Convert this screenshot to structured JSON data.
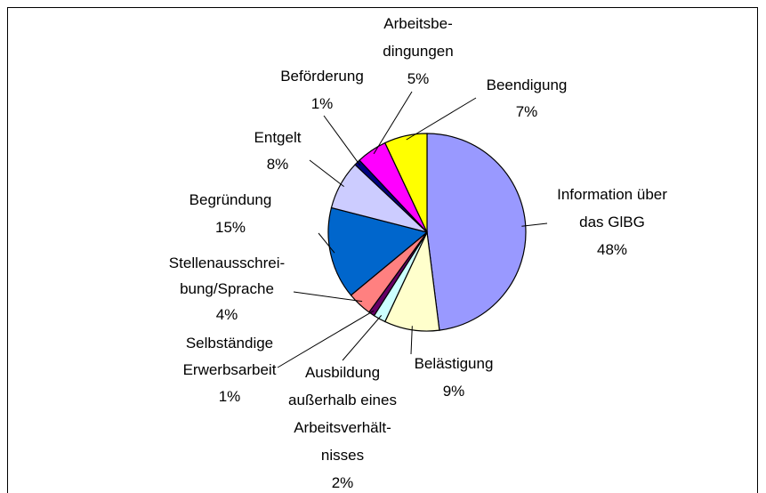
{
  "chart_data": {
    "type": "pie",
    "categories": [
      [
        "Information über",
        "das GlBG"
      ],
      [
        "Belästigung"
      ],
      [
        "Ausbildung",
        "außerhalb eines",
        "Arbeitsverhält-",
        "nisses"
      ],
      [
        "Selbständige",
        "Erwerbsarbeit"
      ],
      [
        "Stellenausschrei-",
        "bung/Sprache"
      ],
      [
        "Begründung"
      ],
      [
        "Entgelt"
      ],
      [
        "Beförderung"
      ],
      [
        "Arbeitsbe-",
        "dingungen"
      ],
      [
        "Beendigung"
      ]
    ],
    "values": [
      48,
      9,
      2,
      1,
      4,
      15,
      8,
      1,
      5,
      7
    ],
    "value_labels": [
      "48%",
      "9%",
      "2%",
      "1%",
      "4%",
      "15%",
      "8%",
      "1%",
      "5%",
      "7%"
    ],
    "colors": [
      "#9999ff",
      "#ffffcc",
      "#ccffff",
      "#660066",
      "#ff8080",
      "#0066cc",
      "#ccccff",
      "#000080",
      "#ff00ff",
      "#ffff00"
    ]
  }
}
